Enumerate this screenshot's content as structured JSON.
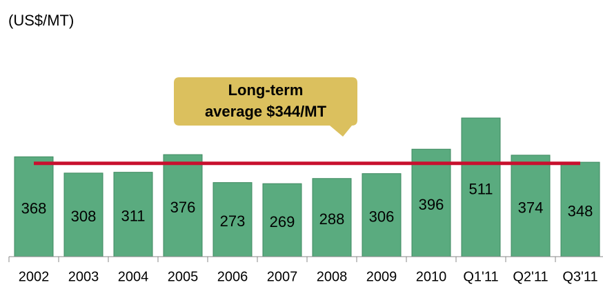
{
  "chart_data": {
    "type": "bar",
    "unit_label": "(US$/MT)",
    "categories": [
      "2002",
      "2003",
      "2004",
      "2005",
      "2006",
      "2007",
      "2008",
      "2009",
      "2010",
      "Q1'11",
      "Q2'11",
      "Q3'11"
    ],
    "values": [
      368,
      308,
      311,
      376,
      273,
      269,
      288,
      306,
      396,
      511,
      374,
      348
    ],
    "color": "#5aab7f",
    "average": 344,
    "average_color": "#c8102e",
    "annotation": [
      "Long-term",
      "average $344/MT"
    ],
    "annotation_color": "#dbc05e"
  }
}
